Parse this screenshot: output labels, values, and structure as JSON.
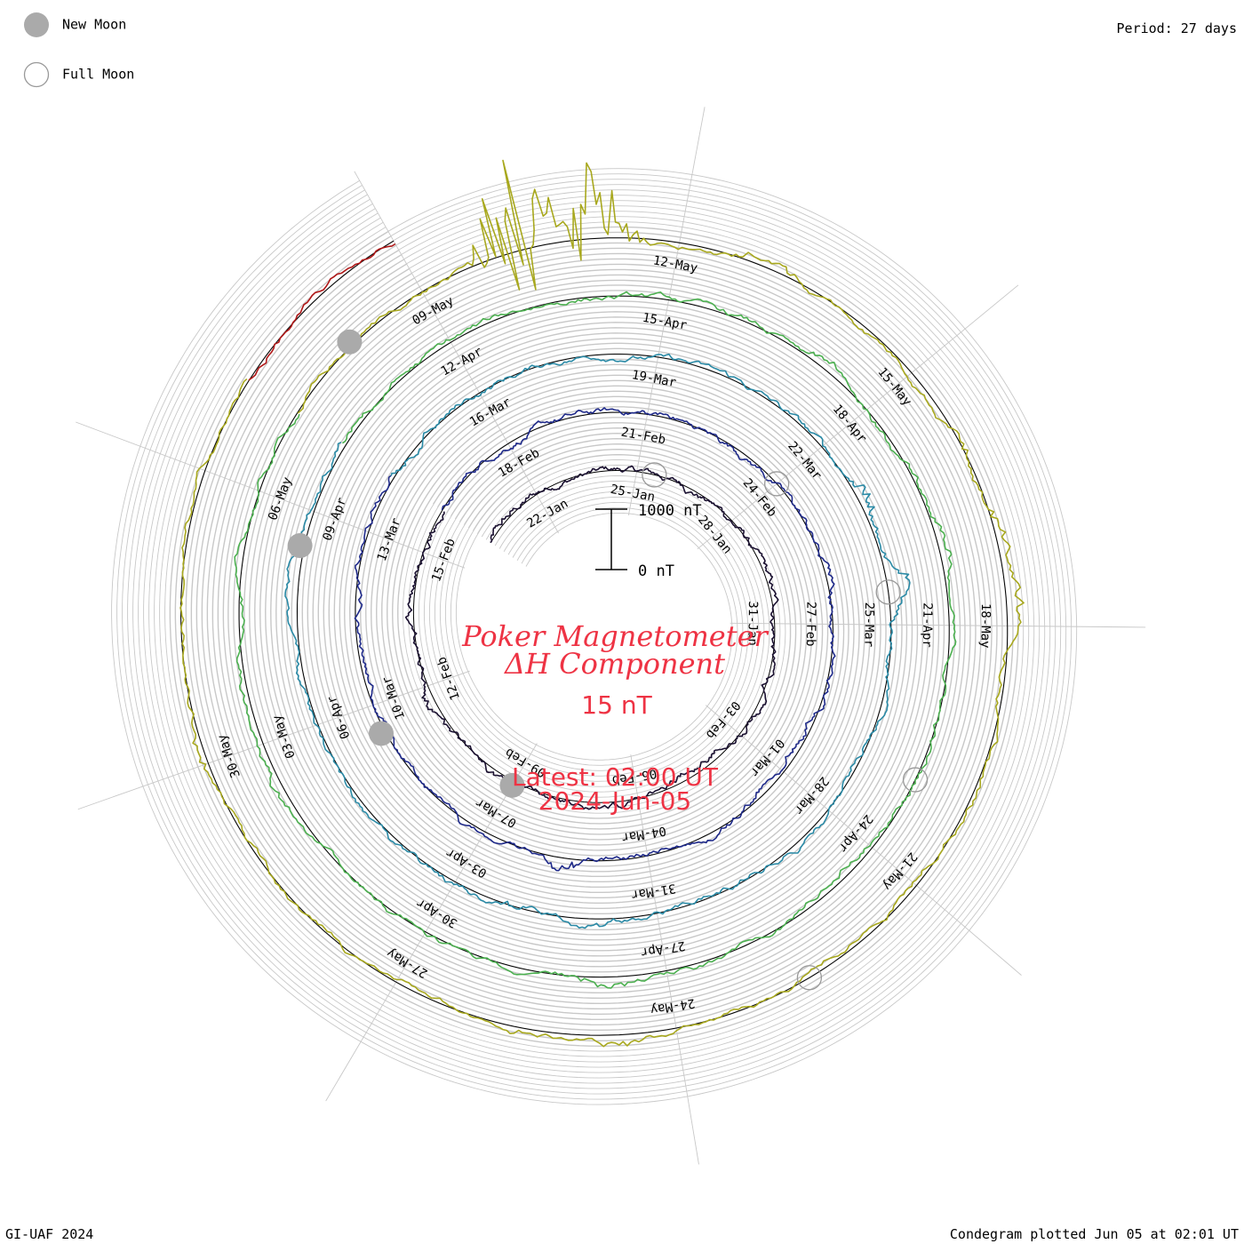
{
  "header": {
    "legend_new_moon": "New Moon",
    "legend_full_moon": "Full Moon",
    "period": "Period: 27 days"
  },
  "footer": {
    "credit": "GI-UAF 2024",
    "plotted": "Condegram plotted Jun 05 at 02:01 UT"
  },
  "center": {
    "title_line1": "Poker Magnetometer",
    "title_line2": "ΔH Component",
    "baseline": "15 nT",
    "latest": "Latest: 02:00 UT",
    "date": "2024-Jun-05",
    "scale_top": "1000 nT",
    "scale_bottom": "0 nT"
  },
  "chart_data": {
    "type": "line",
    "subtype": "condegram-spiral",
    "title": "Poker Magnetometer ΔH Component",
    "baseline": "15 nT",
    "period_days": 27,
    "scale_bar_nT": [
      0,
      1000
    ],
    "start_date": "2024-01-20",
    "end_date": "2024-06-05",
    "spiral": [
      {
        "start": "20-Jan",
        "color": "#1a1030"
      },
      {
        "start": "16-Feb",
        "color": "#1f2a8a"
      },
      {
        "start": "14-Mar",
        "color": "#2a8aa6"
      },
      {
        "start": "10-Apr",
        "color": "#4cb050"
      },
      {
        "start": "07-May",
        "color": "#a8a81e"
      },
      {
        "start": "03-Jun",
        "color": "#b01818"
      }
    ],
    "date_labels": [
      {
        "label": "22-Jan",
        "day": 2
      },
      {
        "label": "25-Jan",
        "day": 5
      },
      {
        "label": "28-Jan",
        "day": 8
      },
      {
        "label": "31-Jan",
        "day": 11
      },
      {
        "label": "03-Feb",
        "day": 14
      },
      {
        "label": "06-Feb",
        "day": 17
      },
      {
        "label": "09-Feb",
        "day": 20
      },
      {
        "label": "12-Feb",
        "day": 23
      },
      {
        "label": "15-Feb",
        "day": 26
      },
      {
        "label": "18-Feb",
        "day": 29
      },
      {
        "label": "21-Feb",
        "day": 32
      },
      {
        "label": "24-Feb",
        "day": 35
      },
      {
        "label": "27-Feb",
        "day": 38
      },
      {
        "label": "01-Mar",
        "day": 41
      },
      {
        "label": "04-Mar",
        "day": 44
      },
      {
        "label": "07-Mar",
        "day": 47
      },
      {
        "label": "10-Mar",
        "day": 50
      },
      {
        "label": "13-Mar",
        "day": 53
      },
      {
        "label": "16-Mar",
        "day": 56
      },
      {
        "label": "19-Mar",
        "day": 59
      },
      {
        "label": "22-Mar",
        "day": 62
      },
      {
        "label": "25-Mar",
        "day": 65
      },
      {
        "label": "28-Mar",
        "day": 68
      },
      {
        "label": "31-Mar",
        "day": 71
      },
      {
        "label": "03-Apr",
        "day": 74
      },
      {
        "label": "06-Apr",
        "day": 77
      },
      {
        "label": "09-Apr",
        "day": 80
      },
      {
        "label": "12-Apr",
        "day": 83
      },
      {
        "label": "15-Apr",
        "day": 86
      },
      {
        "label": "18-Apr",
        "day": 89
      },
      {
        "label": "21-Apr",
        "day": 92
      },
      {
        "label": "24-Apr",
        "day": 95
      },
      {
        "label": "27-Apr",
        "day": 98
      },
      {
        "label": "30-Apr",
        "day": 101
      },
      {
        "label": "03-May",
        "day": 104
      },
      {
        "label": "06-May",
        "day": 107
      },
      {
        "label": "09-May",
        "day": 110
      },
      {
        "label": "12-May",
        "day": 113
      },
      {
        "label": "15-May",
        "day": 116
      },
      {
        "label": "18-May",
        "day": 119
      },
      {
        "label": "21-May",
        "day": 122
      },
      {
        "label": "24-May",
        "day": 125
      },
      {
        "label": "27-May",
        "day": 128
      },
      {
        "label": "30-May",
        "day": 131
      }
    ],
    "new_moons": [
      20.0,
      49.5,
      79.5,
      109.0
    ],
    "full_moons": [
      5.5,
      35.0,
      64.5,
      94.0,
      123.5
    ],
    "disturbances": [
      {
        "day": 17.7,
        "amplitude_nT": 60
      },
      {
        "day": 22.6,
        "amplitude_nT": 90
      },
      {
        "day": 25.0,
        "amplitude_nT": 70
      },
      {
        "day": 26.3,
        "amplitude_nT": 50
      },
      {
        "day": 32.2,
        "amplitude_nT": 30
      },
      {
        "day": 37.3,
        "amplitude_nT": 60
      },
      {
        "day": 45.5,
        "amplitude_nT": 180
      },
      {
        "day": 54.0,
        "amplitude_nT": 50
      },
      {
        "day": 63.0,
        "amplitude_nT": 200
      },
      {
        "day": 64.5,
        "amplitude_nT": 350
      },
      {
        "day": 72.0,
        "amplitude_nT": 80
      },
      {
        "day": 73.3,
        "amplitude_nT": 60
      },
      {
        "day": 79.0,
        "amplitude_nT": 70
      },
      {
        "day": 81.0,
        "amplitude_nT": 50
      },
      {
        "day": 88.2,
        "amplitude_nT": 90
      },
      {
        "day": 90.0,
        "amplitude_nT": 110
      },
      {
        "day": 91.0,
        "amplitude_nT": 130
      },
      {
        "day": 98.7,
        "amplitude_nT": 120
      },
      {
        "day": 103.5,
        "amplitude_nT": 110
      },
      {
        "day": 104.0,
        "amplitude_nT": 80
      },
      {
        "day": 111.2,
        "amplitude_nT": 1500
      },
      {
        "day": 112.0,
        "amplitude_nT": 900
      },
      {
        "day": 114.0,
        "amplitude_nT": 150
      },
      {
        "day": 117.0,
        "amplitude_nT": 120
      },
      {
        "day": 118.0,
        "amplitude_nT": 150
      },
      {
        "day": 118.8,
        "amplitude_nT": 200
      },
      {
        "day": 125.5,
        "amplitude_nT": 120
      },
      {
        "day": 126.8,
        "amplitude_nT": 80
      },
      {
        "day": 131.0,
        "amplitude_nT": 100
      }
    ]
  }
}
